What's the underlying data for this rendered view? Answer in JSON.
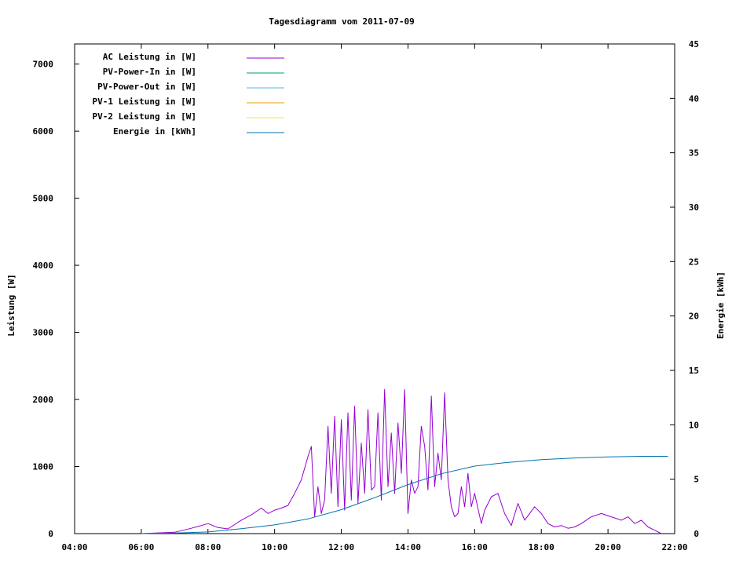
{
  "chart_data": {
    "type": "line",
    "title": "Tagesdiagramm vom 2011-07-09",
    "ylabel_left": "Leistung [W]",
    "ylabel_right": "Energie [kWh]",
    "xlim": [
      4,
      22
    ],
    "ylim_left": [
      0,
      7300
    ],
    "ylim_right": [
      0,
      45
    ],
    "x_ticks": [
      "04:00",
      "06:00",
      "08:00",
      "10:00",
      "12:00",
      "14:00",
      "16:00",
      "18:00",
      "20:00",
      "22:00"
    ],
    "y_left_ticks": [
      "0",
      "1000",
      "2000",
      "3000",
      "4000",
      "5000",
      "6000",
      "7000"
    ],
    "y_right_ticks": [
      "0",
      "5",
      "10",
      "15",
      "20",
      "25",
      "30",
      "35",
      "40",
      "45"
    ],
    "grid": false,
    "legend_placement": "top-left",
    "series": [
      {
        "name": "AC Leistung in [W]",
        "color": "#9400d3",
        "axis": "left",
        "x": [
          6.0,
          7.0,
          7.5,
          7.8,
          8.0,
          8.3,
          8.6,
          9.0,
          9.3,
          9.6,
          9.8,
          10.0,
          10.2,
          10.4,
          10.6,
          10.8,
          11.0,
          11.1,
          11.2,
          11.3,
          11.4,
          11.5,
          11.6,
          11.7,
          11.8,
          11.9,
          12.0,
          12.1,
          12.2,
          12.3,
          12.4,
          12.5,
          12.6,
          12.7,
          12.8,
          12.9,
          13.0,
          13.1,
          13.2,
          13.3,
          13.4,
          13.5,
          13.6,
          13.7,
          13.8,
          13.9,
          14.0,
          14.1,
          14.2,
          14.3,
          14.4,
          14.5,
          14.6,
          14.7,
          14.8,
          14.9,
          15.0,
          15.1,
          15.2,
          15.3,
          15.4,
          15.5,
          15.6,
          15.7,
          15.8,
          15.9,
          16.0,
          16.2,
          16.3,
          16.5,
          16.7,
          16.9,
          17.1,
          17.3,
          17.5,
          17.8,
          18.0,
          18.2,
          18.4,
          18.6,
          18.8,
          19.0,
          19.2,
          19.5,
          19.8,
          20.1,
          20.4,
          20.6,
          20.8,
          21.0,
          21.2,
          21.4,
          21.6
        ],
        "values": [
          0,
          20,
          80,
          120,
          150,
          90,
          70,
          200,
          280,
          380,
          300,
          350,
          380,
          420,
          600,
          800,
          1150,
          1300,
          250,
          700,
          300,
          500,
          1600,
          600,
          1750,
          400,
          1700,
          350,
          1800,
          500,
          1900,
          450,
          1350,
          600,
          1850,
          650,
          700,
          1800,
          500,
          2150,
          700,
          1500,
          600,
          1650,
          900,
          2150,
          300,
          800,
          600,
          700,
          1600,
          1300,
          650,
          2050,
          700,
          1200,
          800,
          2100,
          800,
          400,
          250,
          300,
          700,
          400,
          900,
          400,
          600,
          150,
          350,
          550,
          600,
          300,
          120,
          450,
          200,
          400,
          300,
          150,
          100,
          120,
          80,
          100,
          150,
          250,
          300,
          250,
          200,
          250,
          150,
          200,
          100,
          50,
          0
        ]
      },
      {
        "name": "PV-Power-In in [W]",
        "color": "#009e73",
        "axis": "left",
        "x": [],
        "values": []
      },
      {
        "name": "PV-Power-Out in [W]",
        "color": "#56b4e9",
        "axis": "left",
        "x": [],
        "values": []
      },
      {
        "name": "PV-1 Leistung in [W]",
        "color": "#e69f00",
        "axis": "left",
        "x": [],
        "values": []
      },
      {
        "name": "PV-2 Leistung in [W]",
        "color": "#f0e442",
        "axis": "left",
        "x": [],
        "values": []
      },
      {
        "name": "Energie in [kWh]",
        "color": "#0072b2",
        "axis": "right",
        "x": [
          6.0,
          7.0,
          8.0,
          9.0,
          10.0,
          11.0,
          12.0,
          13.0,
          14.0,
          15.0,
          16.0,
          17.0,
          18.0,
          19.0,
          20.0,
          21.0,
          21.8
        ],
        "values": [
          0,
          0.05,
          0.15,
          0.45,
          0.8,
          1.35,
          2.2,
          3.3,
          4.5,
          5.5,
          6.2,
          6.55,
          6.8,
          6.95,
          7.05,
          7.1,
          7.1
        ]
      }
    ]
  }
}
